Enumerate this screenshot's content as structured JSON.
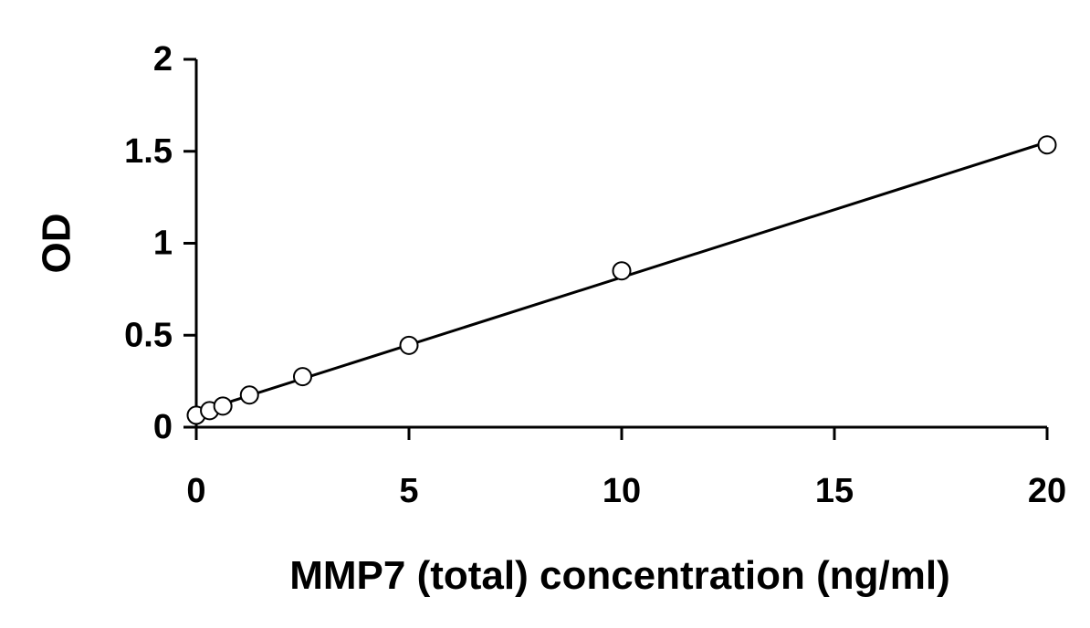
{
  "chart_data": {
    "type": "scatter",
    "title": "",
    "xlabel": "MMP7 (total) concentration (ng/ml)",
    "ylabel": "OD",
    "xlim": [
      0,
      20
    ],
    "ylim": [
      0,
      2
    ],
    "x_ticks": [
      0,
      5,
      10,
      15,
      20
    ],
    "y_ticks": [
      0,
      0.5,
      1,
      1.5,
      2
    ],
    "x_tick_labels": [
      "0",
      "5",
      "10",
      "15",
      "20"
    ],
    "y_tick_labels": [
      "0",
      "0.5",
      "1",
      "1.5",
      "2"
    ],
    "grid": false,
    "legend": "none",
    "series": [
      {
        "marker": "open-circle",
        "x": [
          0,
          0.313,
          0.625,
          1.25,
          2.5,
          5,
          10,
          20
        ],
        "y": [
          0.065,
          0.09,
          0.115,
          0.175,
          0.275,
          0.445,
          0.85,
          1.535
        ]
      }
    ],
    "trendline": {
      "type": "linear",
      "x": [
        0,
        20
      ],
      "y": [
        0.08,
        1.55
      ]
    },
    "colors": {
      "axis": "#000000",
      "marker_stroke": "#000000",
      "marker_fill": "#ffffff",
      "trendline": "#000000"
    }
  }
}
